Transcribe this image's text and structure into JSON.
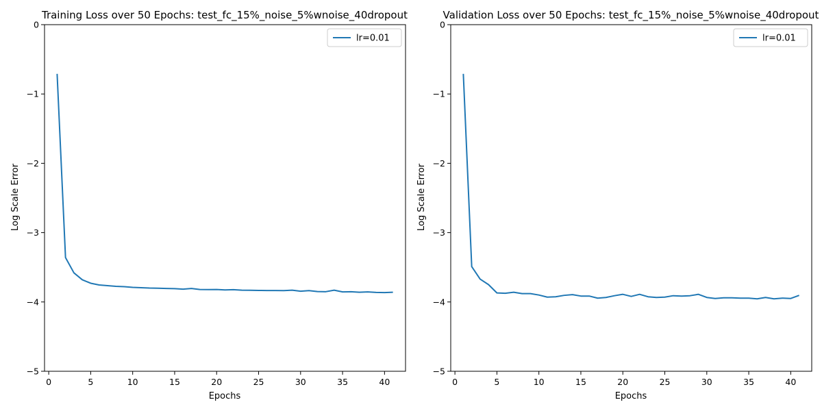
{
  "chart_data": [
    {
      "type": "line",
      "title": "Training Loss over 50 Epochs: test_fc_15%_noise_5%wnoise_40dropout",
      "xlabel": "Epochs",
      "ylabel": "Log Scale Error",
      "xlim": [
        -0.5,
        42.5
      ],
      "ylim": [
        -5,
        0
      ],
      "xticks": [
        0,
        5,
        10,
        15,
        20,
        25,
        30,
        35,
        40
      ],
      "yticks": [
        0,
        -1,
        -2,
        -3,
        -4,
        -5
      ],
      "xtick_labels": [
        "0",
        "5",
        "10",
        "15",
        "20",
        "25",
        "30",
        "35",
        "40"
      ],
      "ytick_labels": [
        "0",
        "−1",
        "−2",
        "−3",
        "−4",
        "−5"
      ],
      "grid": false,
      "legend_position": "top-right",
      "series": [
        {
          "name": "lr=0.01",
          "color": "#1f77b4",
          "x": [
            1,
            2,
            3,
            4,
            5,
            6,
            7,
            8,
            9,
            10,
            11,
            12,
            13,
            14,
            15,
            16,
            17,
            18,
            19,
            20,
            21,
            22,
            23,
            24,
            25,
            26,
            27,
            28,
            29,
            30,
            31,
            32,
            33,
            34,
            35,
            36,
            37,
            38,
            39,
            40,
            41
          ],
          "y": [
            -0.71,
            -3.36,
            -3.58,
            -3.68,
            -3.73,
            -3.755,
            -3.765,
            -3.775,
            -3.78,
            -3.79,
            -3.795,
            -3.8,
            -3.802,
            -3.805,
            -3.808,
            -3.815,
            -3.805,
            -3.82,
            -3.822,
            -3.82,
            -3.826,
            -3.823,
            -3.83,
            -3.832,
            -3.834,
            -3.835,
            -3.835,
            -3.836,
            -3.83,
            -3.845,
            -3.837,
            -3.85,
            -3.852,
            -3.83,
            -3.855,
            -3.853,
            -3.86,
            -3.855,
            -3.862,
            -3.865,
            -3.86
          ]
        }
      ]
    },
    {
      "type": "line",
      "title": "Validation Loss over 50 Epochs: test_fc_15%_noise_5%wnoise_40dropout",
      "xlabel": "Epochs",
      "ylabel": "Log Scale Error",
      "xlim": [
        -0.5,
        42.5
      ],
      "ylim": [
        -5,
        0
      ],
      "xticks": [
        0,
        5,
        10,
        15,
        20,
        25,
        30,
        35,
        40
      ],
      "yticks": [
        0,
        -1,
        -2,
        -3,
        -4,
        -5
      ],
      "xtick_labels": [
        "0",
        "5",
        "10",
        "15",
        "20",
        "25",
        "30",
        "35",
        "40"
      ],
      "ytick_labels": [
        "0",
        "−1",
        "−2",
        "−3",
        "−4",
        "−5"
      ],
      "grid": false,
      "legend_position": "top-right",
      "series": [
        {
          "name": "lr=0.01",
          "color": "#1f77b4",
          "x": [
            1,
            2,
            3,
            4,
            5,
            6,
            7,
            8,
            9,
            10,
            11,
            12,
            13,
            14,
            15,
            16,
            17,
            18,
            19,
            20,
            21,
            22,
            23,
            24,
            25,
            26,
            27,
            28,
            29,
            30,
            31,
            32,
            33,
            34,
            35,
            36,
            37,
            38,
            39,
            40,
            41
          ],
          "y": [
            -0.71,
            -3.49,
            -3.67,
            -3.75,
            -3.87,
            -3.875,
            -3.86,
            -3.88,
            -3.88,
            -3.9,
            -3.93,
            -3.925,
            -3.905,
            -3.895,
            -3.915,
            -3.915,
            -3.945,
            -3.935,
            -3.91,
            -3.89,
            -3.92,
            -3.89,
            -3.925,
            -3.935,
            -3.93,
            -3.91,
            -3.915,
            -3.91,
            -3.89,
            -3.935,
            -3.95,
            -3.94,
            -3.94,
            -3.945,
            -3.945,
            -3.955,
            -3.935,
            -3.955,
            -3.945,
            -3.95,
            -3.905
          ]
        }
      ]
    }
  ]
}
